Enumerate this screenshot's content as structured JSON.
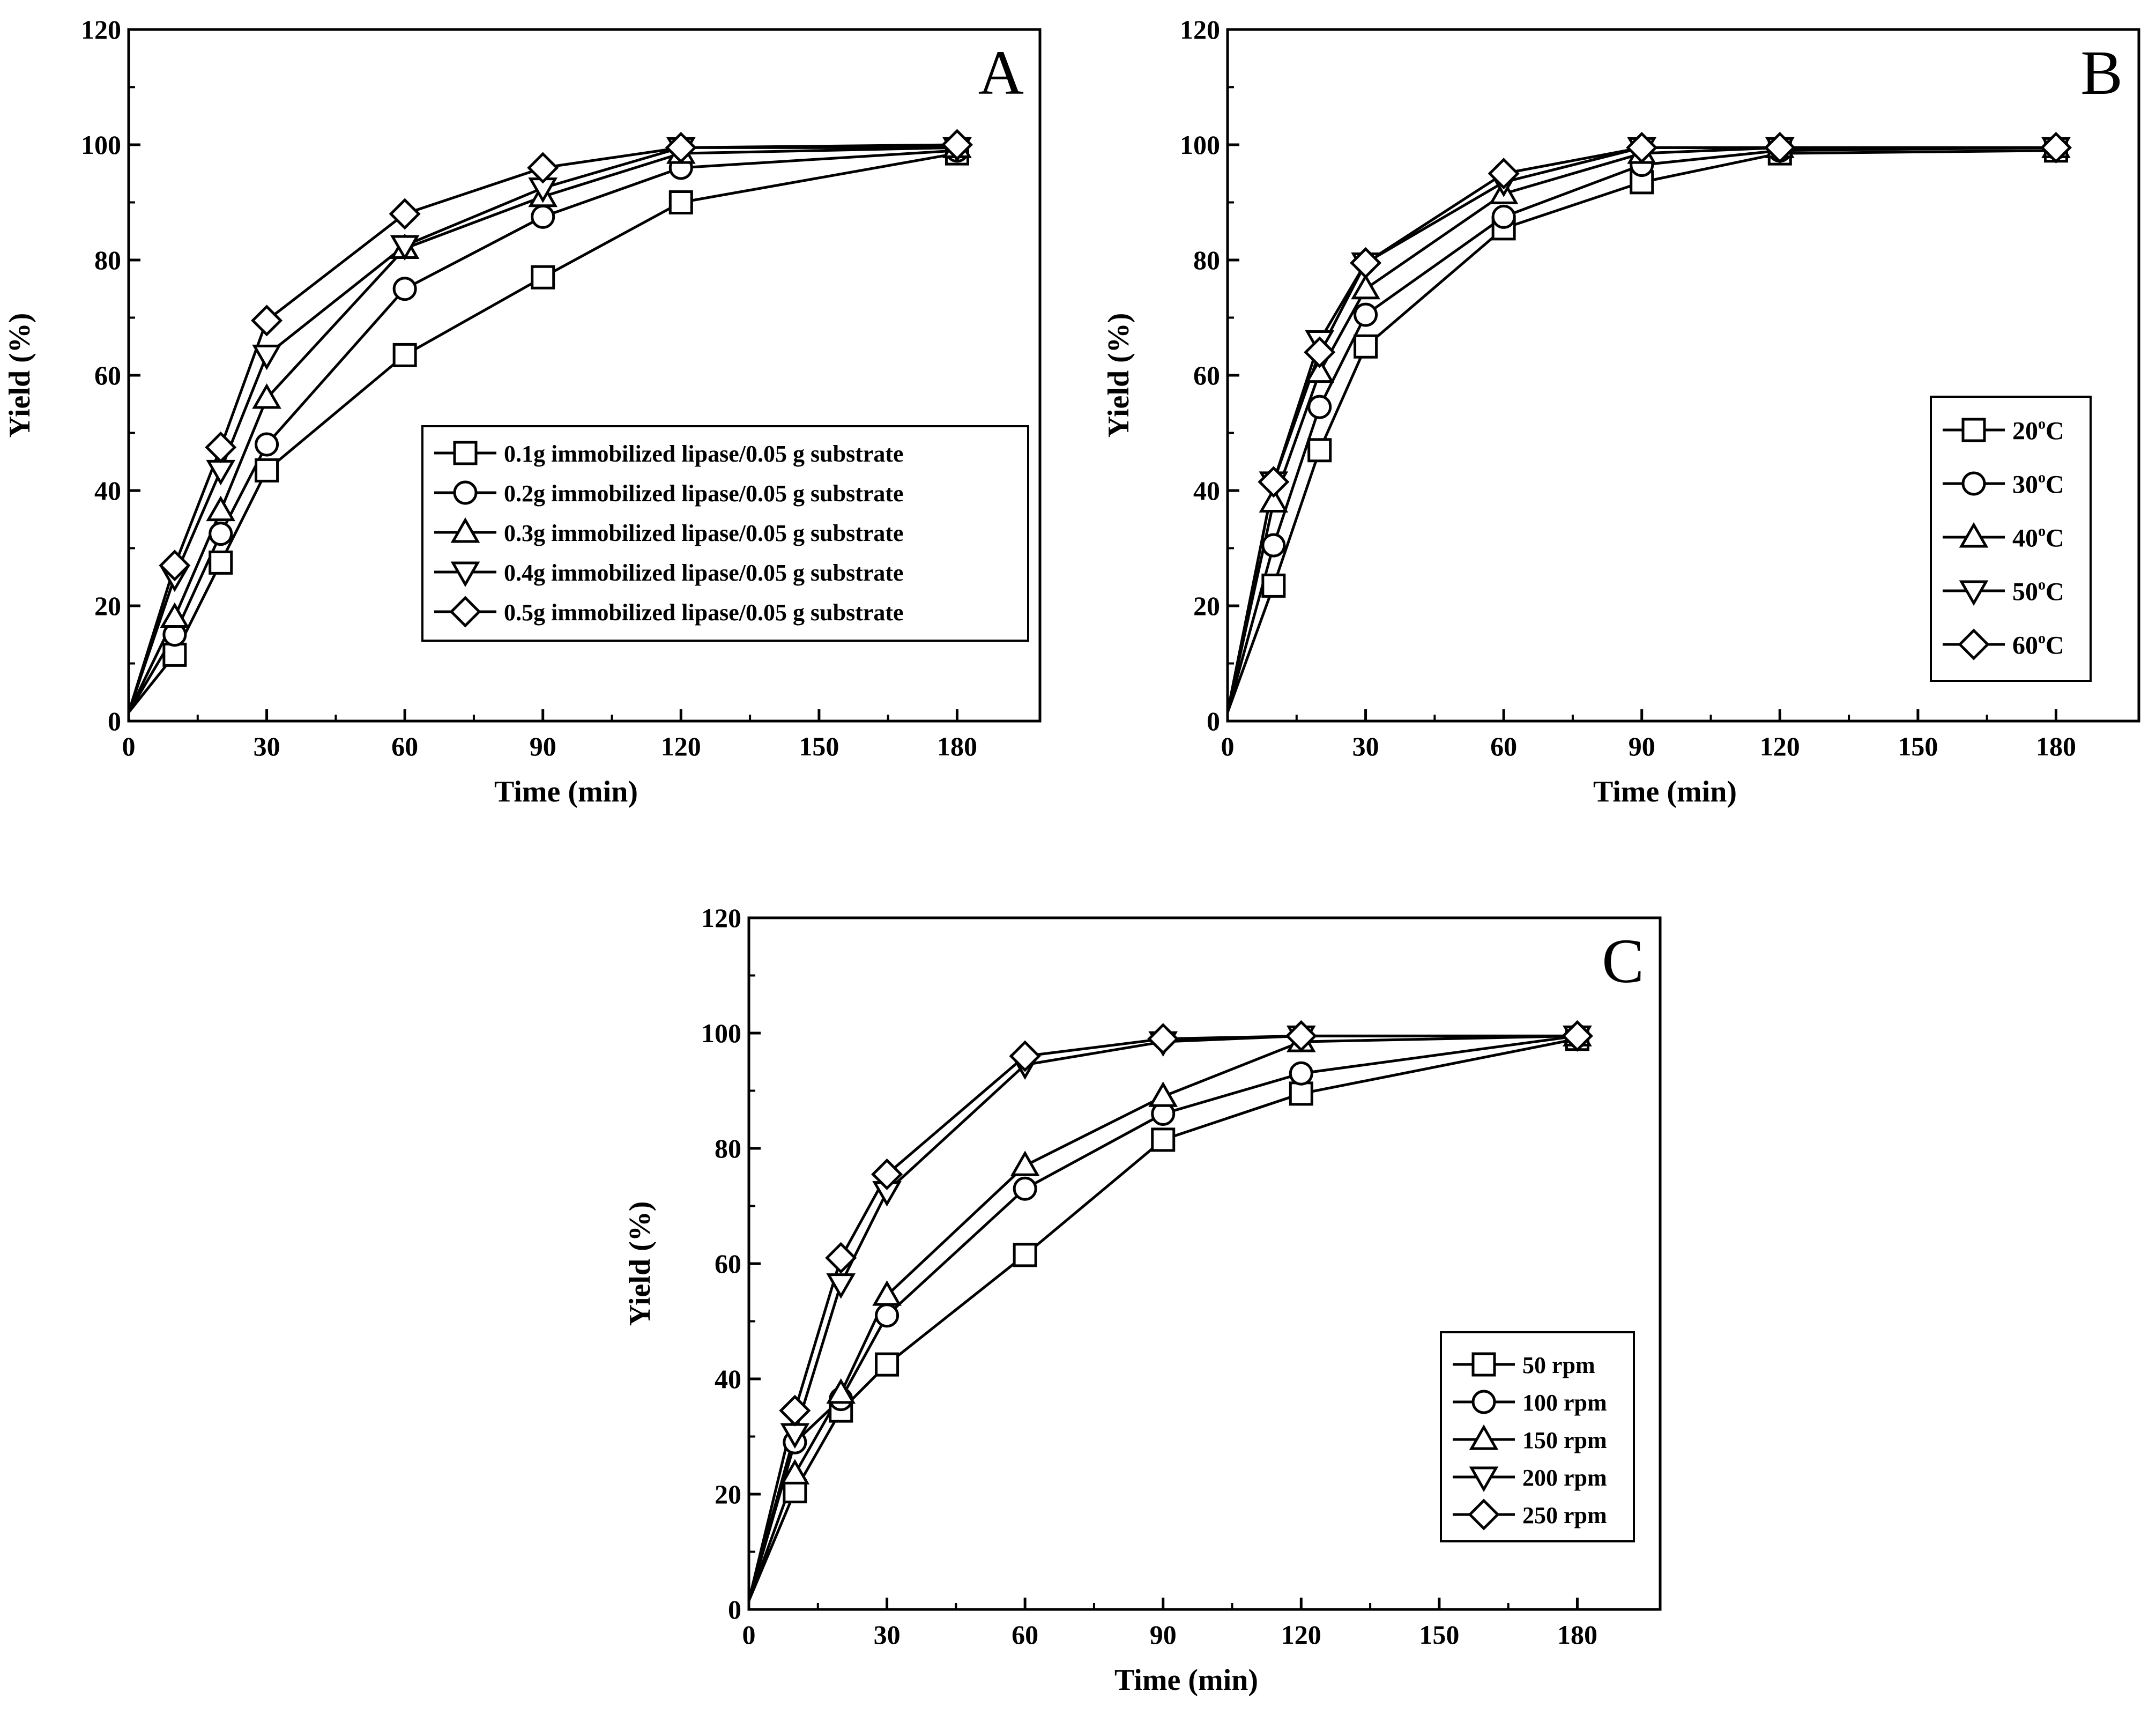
{
  "chart_data": [
    {
      "type": "line",
      "panel": "A",
      "xlabel": "Time (min)",
      "ylabel": "Yield (%)",
      "xlim": [
        0,
        198
      ],
      "ylim": [
        0,
        120
      ],
      "xticks": [
        0,
        30,
        60,
        90,
        120,
        150,
        180
      ],
      "yticks": [
        0,
        20,
        40,
        60,
        80,
        100,
        120
      ],
      "legend_position": "center-right",
      "x": [
        0,
        10,
        20,
        30,
        60,
        90,
        120,
        180
      ],
      "series": [
        {
          "name": "0.1g immobilized lipase/0.05 g substrate",
          "marker": "square",
          "values": [
            1.5,
            11.5,
            27.5,
            43.5,
            63.5,
            77,
            90,
            98.5
          ]
        },
        {
          "name": "0.2g immobilized lipase/0.05 g substrate",
          "marker": "circle",
          "values": [
            1.5,
            15,
            32.5,
            48,
            75,
            87.5,
            96,
            99
          ]
        },
        {
          "name": "0.3g immobilized lipase/0.05 g substrate",
          "marker": "triangle-up",
          "values": [
            1.5,
            18,
            36.5,
            56,
            82,
            91,
            98.5,
            99.5
          ]
        },
        {
          "name": "0.4g immobilized lipase/0.05 g substrate",
          "marker": "triangle-down",
          "values": [
            1.5,
            25,
            43.5,
            63.5,
            82.5,
            92.5,
            99.5,
            99.5
          ]
        },
        {
          "name": "0.5g immobilized lipase/0.05 g substrate",
          "marker": "diamond",
          "values": [
            1.5,
            27,
            47.5,
            69.5,
            88,
            96,
            99.5,
            100
          ]
        }
      ]
    },
    {
      "type": "line",
      "panel": "B",
      "xlabel": "Time (min)",
      "ylabel": "Yield (%)",
      "xlim": [
        0,
        198
      ],
      "ylim": [
        0,
        120
      ],
      "xticks": [
        0,
        30,
        60,
        90,
        120,
        150,
        180
      ],
      "yticks": [
        0,
        20,
        40,
        60,
        80,
        100,
        120
      ],
      "legend_position": "right",
      "x": [
        0,
        10,
        20,
        30,
        60,
        90,
        120,
        180
      ],
      "series": [
        {
          "name": "20",
          "unit": "C",
          "superscript": "o",
          "marker": "square",
          "values": [
            1.5,
            23.5,
            47,
            65,
            85.5,
            93.5,
            98.5,
            99
          ]
        },
        {
          "name": "30",
          "unit": "C",
          "superscript": "o",
          "marker": "circle",
          "values": [
            1.5,
            30.5,
            54.5,
            70.5,
            87.5,
            96.5,
            99,
            99.5
          ]
        },
        {
          "name": "40",
          "unit": "C",
          "superscript": "o",
          "marker": "triangle-up",
          "values": [
            1.5,
            38,
            60.5,
            75,
            91.5,
            98.5,
            99.5,
            99.5
          ]
        },
        {
          "name": "50",
          "unit": "C",
          "superscript": "o",
          "marker": "triangle-down",
          "values": [
            1.5,
            41.5,
            66,
            79.5,
            93.5,
            99.5,
            99.5,
            99.5
          ]
        },
        {
          "name": "60",
          "unit": "C",
          "superscript": "o",
          "marker": "diamond",
          "values": [
            1.5,
            41.5,
            64,
            79.5,
            95,
            99.5,
            99.5,
            99.5
          ]
        }
      ]
    },
    {
      "type": "line",
      "panel": "C",
      "xlabel": "Time (min)",
      "ylabel": "Yield (%)",
      "xlim": [
        0,
        198
      ],
      "ylim": [
        0,
        120
      ],
      "xticks": [
        0,
        30,
        60,
        90,
        120,
        150,
        180
      ],
      "yticks": [
        0,
        20,
        40,
        60,
        80,
        100,
        120
      ],
      "legend_position": "lower-right",
      "x": [
        0,
        10,
        20,
        30,
        60,
        90,
        120,
        180
      ],
      "series": [
        {
          "name": "50 rpm",
          "marker": "square",
          "values": [
            1.5,
            20.5,
            34.5,
            42.5,
            61.5,
            81.5,
            89.5,
            99
          ]
        },
        {
          "name": "100 rpm",
          "marker": "circle",
          "values": [
            1.5,
            29,
            36.5,
            51,
            73,
            86,
            93,
            99.5
          ]
        },
        {
          "name": "150 rpm",
          "marker": "triangle-up",
          "values": [
            1.5,
            23.5,
            37.5,
            54.5,
            77,
            89,
            98.5,
            99.5
          ]
        },
        {
          "name": "200 rpm",
          "marker": "triangle-down",
          "values": [
            1.5,
            30.5,
            56.5,
            72.5,
            94.5,
            98.5,
            99.5,
            99.5
          ]
        },
        {
          "name": "250 rpm",
          "marker": "diamond",
          "values": [
            1.5,
            34.5,
            61,
            75.5,
            96,
            99,
            99.5,
            99.5
          ]
        }
      ]
    }
  ]
}
